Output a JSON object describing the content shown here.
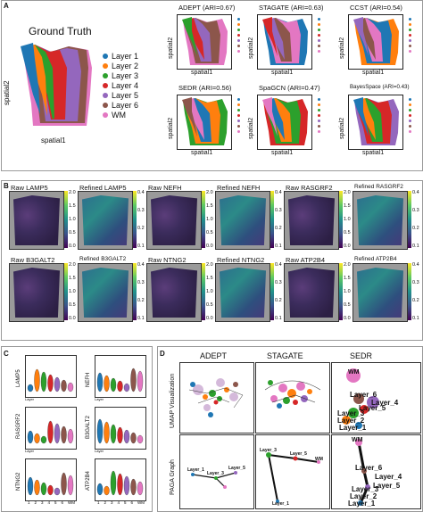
{
  "panels": {
    "a": "A",
    "b": "B",
    "c": "C",
    "d": "D"
  },
  "colors": {
    "layer1": "#1f77b4",
    "layer2": "#ff7f0e",
    "layer3": "#2ca02c",
    "layer4": "#d62728",
    "layer5": "#9467bd",
    "layer6": "#8c564b",
    "wm": "#e377c2",
    "extra": "#17becf"
  },
  "ground_truth": {
    "title": "Ground Truth",
    "xlabel": "spatial1",
    "ylabel": "spatial2",
    "legend": [
      "Layer 1",
      "Layer 2",
      "Layer 3",
      "Layer 4",
      "Layer 5",
      "Layer 6",
      "WM"
    ]
  },
  "methods_a": [
    {
      "title": "ADEPT (ARI=0.67)"
    },
    {
      "title": "STAGATE (ARI=0.63)"
    },
    {
      "title": "CCST (ARI=0.54)"
    },
    {
      "title": "SEDR (ARI=0.56)"
    },
    {
      "title": "SpaGCN (ARI=0.47)"
    },
    {
      "title": "BayesSpace (ARI=0.43)"
    }
  ],
  "small_axes": {
    "x": "spatial1",
    "y": "spatial2"
  },
  "panel_b": [
    {
      "title": "Raw LAMP5",
      "ticks": [
        "2.0",
        "1.5",
        "1.0",
        "0.5",
        "0.0"
      ]
    },
    {
      "title": "Refined LAMP5",
      "ticks": [
        "0.4",
        "0.3",
        "0.2",
        "0.1"
      ]
    },
    {
      "title": "Raw NEFH",
      "ticks": [
        "2.0",
        "1.5",
        "1.0",
        "0.5",
        "0.0"
      ]
    },
    {
      "title": "Refined NEFH",
      "ticks": [
        "0.4",
        "0.3",
        "0.2",
        "0.1"
      ]
    },
    {
      "title": "Raw RASGRF2",
      "ticks": [
        "2.0",
        "1.5",
        "1.0",
        "0.5",
        "0.0"
      ]
    },
    {
      "title": "Refined RASGRF2",
      "ticks": [
        "0.4",
        "0.3",
        "0.2",
        "0.1"
      ]
    },
    {
      "title": "Raw B3GALT2",
      "ticks": [
        "2.0",
        "1.5",
        "1.0",
        "0.5",
        "0.0"
      ]
    },
    {
      "title": "Refined B3GALT2",
      "ticks": [
        "0.4",
        "0.3",
        "0.2",
        "0.1"
      ]
    },
    {
      "title": "Raw NTNG2",
      "ticks": [
        "2.0",
        "1.5",
        "1.0",
        "0.5",
        "0.0"
      ]
    },
    {
      "title": "Refined NTNG2",
      "ticks": [
        "0.4",
        "0.3",
        "0.2",
        "0.1"
      ]
    },
    {
      "title": "Raw ATP2B4",
      "ticks": [
        "2.0",
        "1.5",
        "1.0",
        "0.5",
        "0.0"
      ]
    },
    {
      "title": "Refined ATP2B4",
      "ticks": [
        "0.4",
        "0.3",
        "0.2",
        "0.1"
      ]
    }
  ],
  "panel_c": {
    "genes": [
      "LAMP5",
      "NEFH",
      "RASGRF2",
      "B3GALT2",
      "NTNG2",
      "ATP2B4"
    ],
    "xticks": [
      "1",
      "2",
      "3",
      "4",
      "5",
      "6",
      "WM"
    ],
    "xlabel": "Layer"
  },
  "panel_d": {
    "columns": [
      "ADEPT",
      "STAGATE",
      "SEDR"
    ],
    "row_labels": [
      "UMAP Visualization",
      "PAGA Graph"
    ],
    "sedr_umap_labels": [
      "WM",
      "Layer_6",
      "Layer_4",
      "Layer_5",
      "Layer_3",
      "Layer_2",
      "Layer_1"
    ],
    "sedr_paga_labels": [
      "WM",
      "Layer_6",
      "Layer_4",
      "Layer_5",
      "Layer_3",
      "Layer_2",
      "Layer_1"
    ],
    "small_paga_labels": [
      "Layer_1",
      "Layer_2",
      "Layer_3",
      "Layer_4",
      "Layer_5",
      "Layer_6",
      "WM"
    ]
  }
}
